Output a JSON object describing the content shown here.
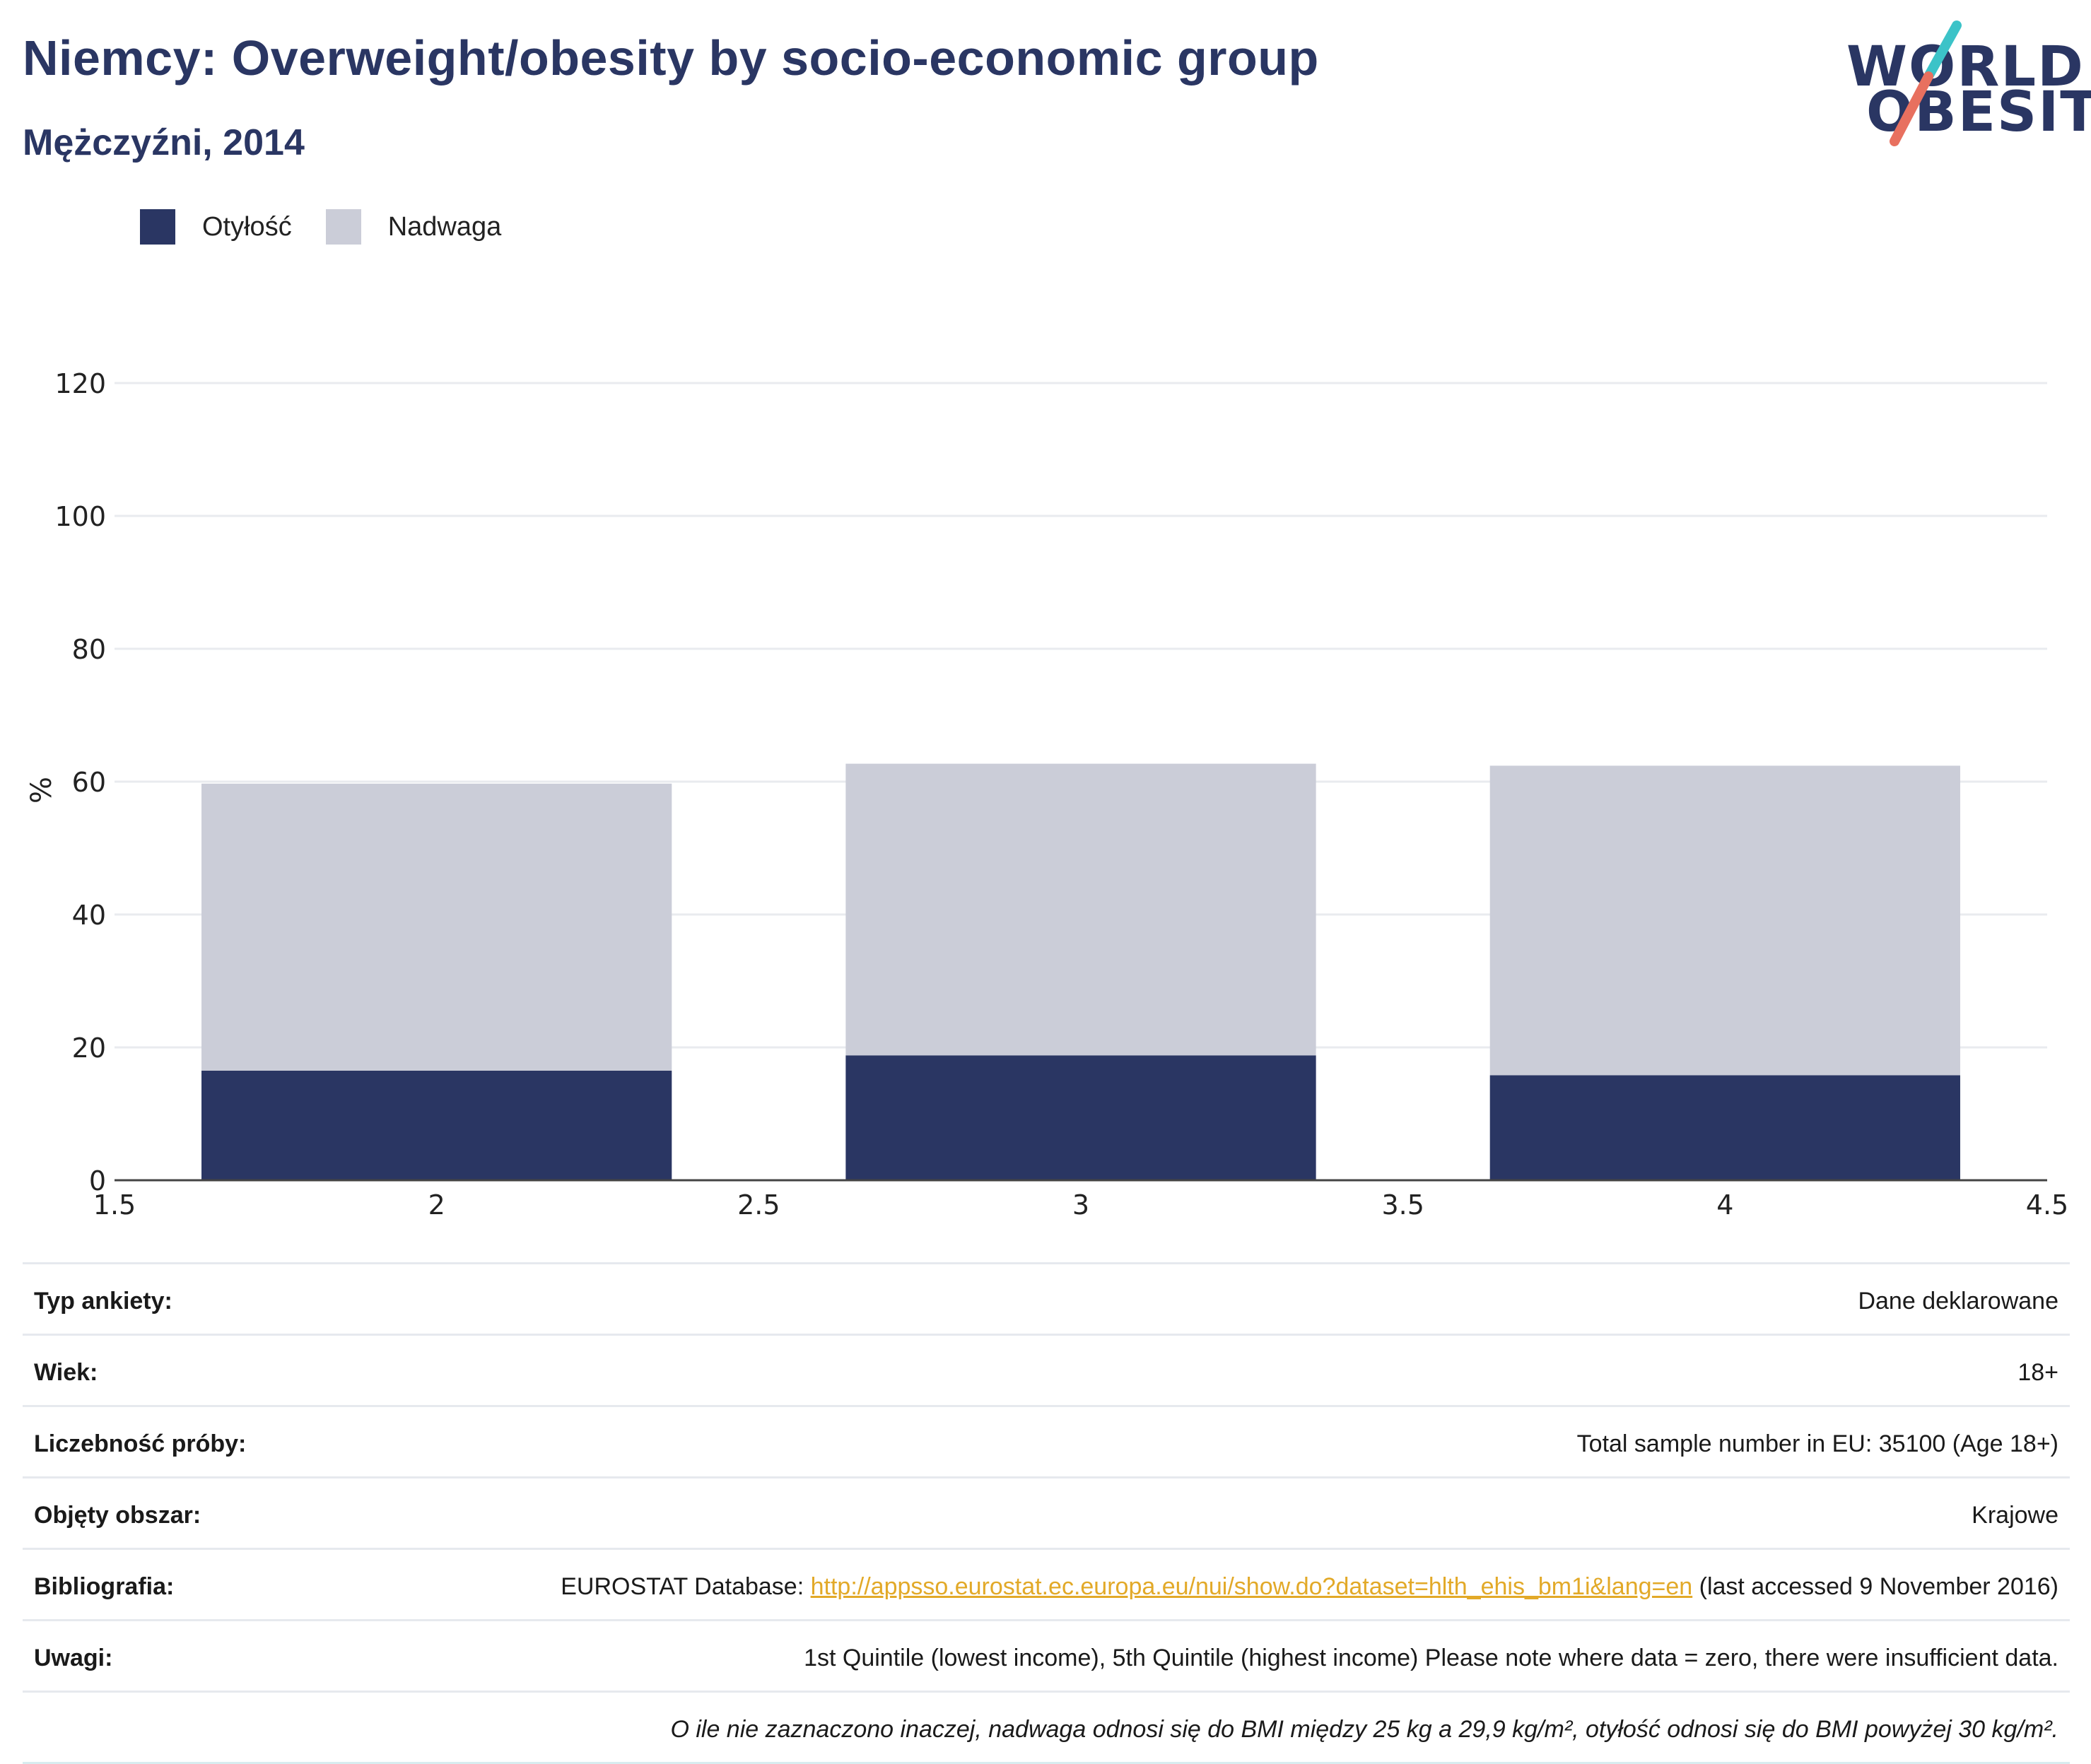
{
  "header": {
    "title": "Niemcy: Overweight/obesity by socio-economic group",
    "subtitle": "Mężczyźni, 2014"
  },
  "logo": {
    "line1": "WORLD",
    "line2": "OBESITY",
    "accent_teal": "#3cc3c8",
    "accent_red": "#e8705f"
  },
  "legend": [
    {
      "label": "Otyłość",
      "color": "#2a3663"
    },
    {
      "label": "Nadwaga",
      "color": "#cbcdd8"
    }
  ],
  "chart_data": {
    "type": "bar",
    "stacked": true,
    "x": [
      2,
      3,
      4
    ],
    "xlim": [
      1.5,
      4.5
    ],
    "xticks": [
      "1.5",
      "2",
      "2.5",
      "3",
      "3.5",
      "4",
      "4.5"
    ],
    "ylim": [
      0,
      120
    ],
    "yticks": [
      "0",
      "20",
      "40",
      "60",
      "80",
      "100",
      "120"
    ],
    "ylabel": "%",
    "xlabel": "",
    "grid": true,
    "legend_position": "top-left",
    "series": [
      {
        "name": "Otyłość",
        "color": "#2a3663",
        "values": [
          16.5,
          18.8,
          15.8
        ]
      },
      {
        "name": "Nadwaga",
        "color": "#cbcdd8",
        "values": [
          43.2,
          43.9,
          46.6
        ]
      }
    ]
  },
  "info": {
    "survey_type": {
      "label": "Typ ankiety:",
      "value": "Dane deklarowane"
    },
    "age": {
      "label": "Wiek:",
      "value": "18+"
    },
    "sample": {
      "label": "Liczebność próby:",
      "value": "Total sample number in EU: 35100 (Age 18+)"
    },
    "area": {
      "label": "Objęty obszar:",
      "value": "Krajowe"
    },
    "bibliography": {
      "label": "Bibliografia:",
      "prefix": "EUROSTAT Database: ",
      "link": "http://appsso.eurostat.ec.europa.eu/nui/show.do?dataset=hlth_ehis_bm1i&lang=en",
      "suffix": " (last accessed 9 November 2016)"
    },
    "notes": {
      "label": "Uwagi:",
      "value": "1st Quintile (lowest income), 5th Quintile (highest income) Please note where data = zero, there were insufficient data."
    },
    "footnote": "O ile nie zaznaczono inaczej, nadwaga odnosi się do BMI między 25 kg a 29,9 kg/m², otyłość odnosi się do BMI powyżej 30 kg/m²."
  }
}
